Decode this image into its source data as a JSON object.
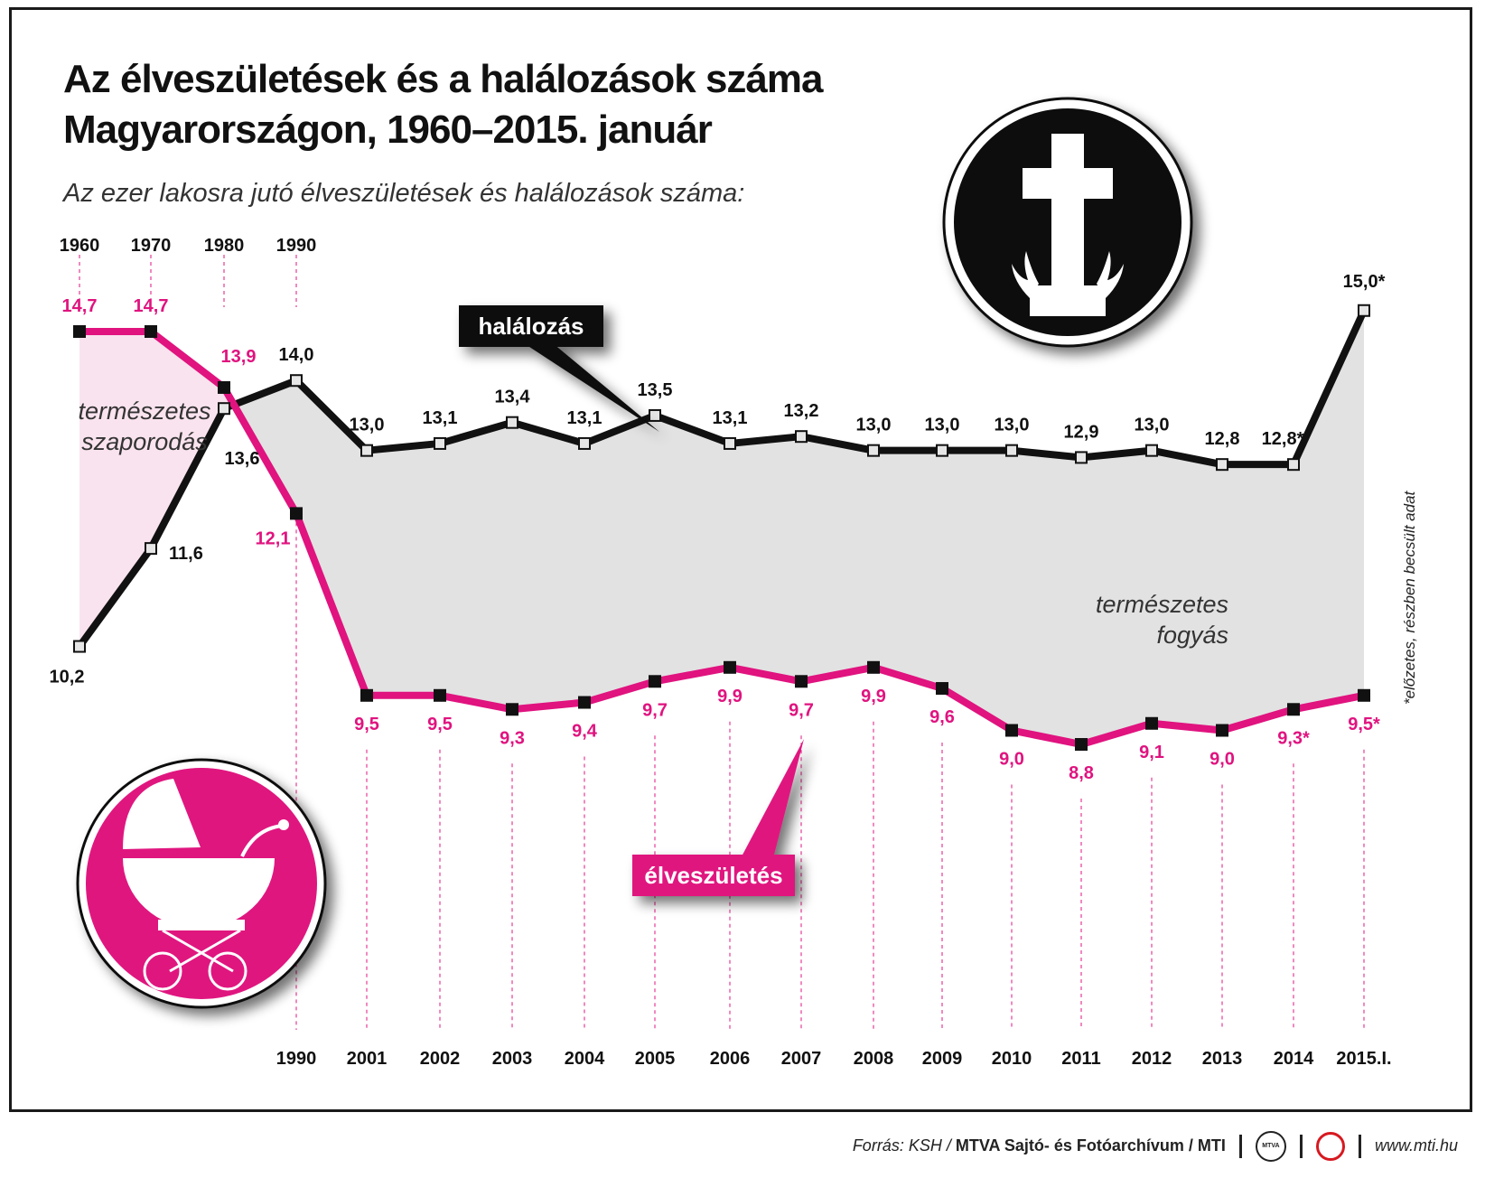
{
  "title_line1": "Az élveszületések és a halálozások száma",
  "title_line2": "Magyarországon, 1960–2015. január",
  "subtitle": "Az ezer lakosra jutó élveszületések és halálozások száma:",
  "footer": {
    "source_prefix": "Forrás: KSH / ",
    "source_bold": "MTVA Sajtó- és Fotóarchívum / MTI",
    "logo_text": "MTVA",
    "url": "www.mti.hu"
  },
  "icons": {
    "cross": "grave-cross-icon",
    "pram": "baby-pram-icon"
  },
  "colors": {
    "births": "#e0137f",
    "deaths": "#111111",
    "gap": "#e2e2e2",
    "increase": "#f9e3ee"
  },
  "chart_data": {
    "type": "line",
    "top_x_labels": [
      "1960",
      "1970",
      "1980",
      "1990"
    ],
    "x": [
      "1960",
      "1970",
      "1980",
      "1990",
      "2001",
      "2002",
      "2003",
      "2004",
      "2005",
      "2006",
      "2007",
      "2008",
      "2009",
      "2010",
      "2011",
      "2012",
      "2013",
      "2014",
      "2015.I."
    ],
    "bottom_x_labels": [
      "1990",
      "2001",
      "2002",
      "2003",
      "2004",
      "2005",
      "2006",
      "2007",
      "2008",
      "2009",
      "2010",
      "2011",
      "2012",
      "2013",
      "2014",
      "2015.I."
    ],
    "series": [
      {
        "name": "halálozás",
        "values": [
          10.2,
          11.6,
          13.6,
          14.0,
          13.0,
          13.1,
          13.4,
          13.1,
          13.5,
          13.1,
          13.2,
          13.0,
          13.0,
          13.0,
          12.9,
          13.0,
          12.8,
          12.8,
          15.0
        ],
        "labels": [
          "10,2",
          "11,6",
          "13,6",
          "14,0",
          "13,0",
          "13,1",
          "13,4",
          "13,1",
          "13,5",
          "13,1",
          "13,2",
          "13,0",
          "13,0",
          "13,0",
          "12,9",
          "13,0",
          "12,8",
          "12,8*",
          "15,0*"
        ]
      },
      {
        "name": "élveszületés",
        "values": [
          14.7,
          14.7,
          13.9,
          12.1,
          9.5,
          9.5,
          9.3,
          9.4,
          9.7,
          9.9,
          9.7,
          9.9,
          9.6,
          9.0,
          8.8,
          9.1,
          9.0,
          9.3,
          9.5
        ],
        "labels": [
          "14,7",
          "14,7",
          "13,9",
          "12,1",
          "9,5",
          "9,5",
          "9,3",
          "9,4",
          "9,7",
          "9,9",
          "9,7",
          "9,9",
          "9,6",
          "9,0",
          "8,8",
          "9,1",
          "9,0",
          "9,3*",
          "9,5*"
        ]
      }
    ],
    "annotations": {
      "natural_increase": [
        "természetes",
        "szaporodás"
      ],
      "natural_decrease": [
        "természetes",
        "fogyás"
      ],
      "footnote": "*előzetes, részben becsült adat"
    },
    "ylim": [
      8.8,
      15.0
    ],
    "grid": false,
    "legend": "callout labels on the lines"
  }
}
